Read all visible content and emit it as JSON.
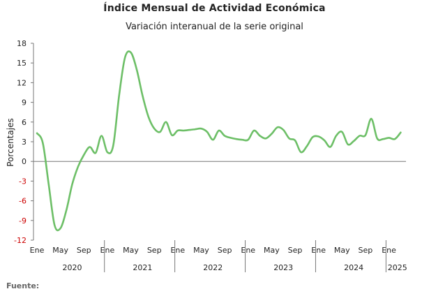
{
  "chart_data": {
    "type": "line",
    "title": "Índice Mensual de Actividad Económica",
    "subtitle": "Variación interanual de la serie original",
    "ylabel": "Porcentajes",
    "xlabel": "",
    "source": "Fuente:",
    "ylim": [
      -12,
      18
    ],
    "y_ticks": [
      "18",
      "15",
      "12",
      "9",
      "6",
      "3",
      "0",
      "-3",
      "-6",
      "-9",
      "-12"
    ],
    "month_labels": [
      "Ene",
      "May",
      "Sep"
    ],
    "years": [
      "2020",
      "2021",
      "2022",
      "2023",
      "2024",
      "2025"
    ],
    "grid": false,
    "line_color": "#6dbf67",
    "negative_tick_color": "#cc0000",
    "series": [
      {
        "values": [
          4.3,
          2.8,
          -3.5,
          -9.7,
          -10.2,
          -7.5,
          -3.5,
          -0.8,
          1.0,
          2.2,
          1.3,
          3.9,
          1.4,
          2.4,
          10.0,
          15.8,
          16.6,
          14.0,
          10.0,
          6.8,
          5.0,
          4.5,
          6.0,
          4.0,
          4.7,
          4.7,
          4.8,
          4.9,
          5.0,
          4.5,
          3.3,
          4.7,
          3.9,
          3.6,
          3.4,
          3.3,
          3.3,
          4.7,
          3.9,
          3.5,
          4.2,
          5.2,
          4.8,
          3.5,
          3.2,
          1.4,
          2.3,
          3.7,
          3.8,
          3.2,
          2.2,
          3.9,
          4.5,
          2.6,
          3.1,
          3.9,
          4.0,
          6.5,
          3.5,
          3.4,
          3.6,
          3.4,
          4.4
        ]
      }
    ]
  }
}
